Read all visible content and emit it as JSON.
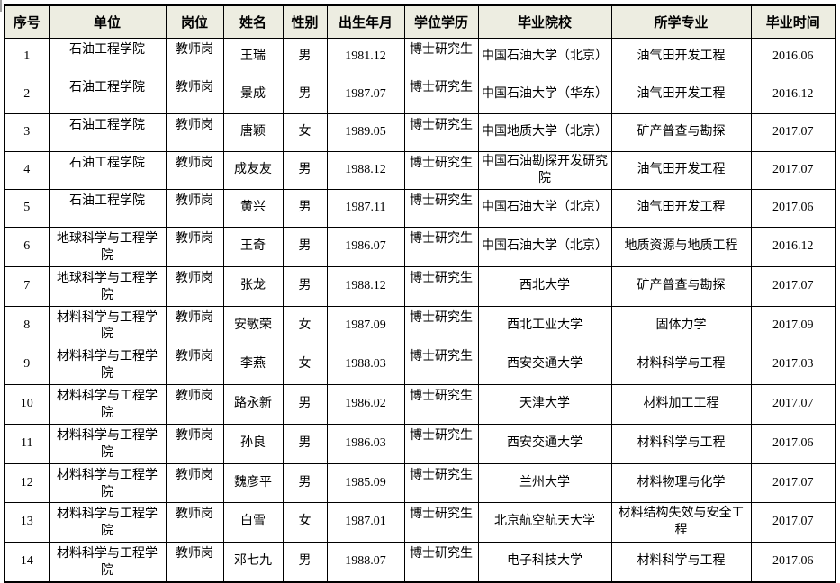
{
  "colors": {
    "header_bg": "#EDEDE1",
    "border": "#000000",
    "page_bg": "#FFFFFF"
  },
  "table": {
    "columns": [
      "序号",
      "单位",
      "岗位",
      "姓名",
      "性别",
      "出生年月",
      "学位学历",
      "毕业院校",
      "所学专业",
      "毕业时间"
    ],
    "rows": [
      [
        "1",
        "石油工程学院",
        "教师岗",
        "王瑞",
        "男",
        "1981.12",
        "博士研究生",
        "中国石油大学（北京）",
        "油气田开发工程",
        "2016.06"
      ],
      [
        "2",
        "石油工程学院",
        "教师岗",
        "景成",
        "男",
        "1987.07",
        "博士研究生",
        "中国石油大学（华东）",
        "油气田开发工程",
        "2016.12"
      ],
      [
        "3",
        "石油工程学院",
        "教师岗",
        "唐颖",
        "女",
        "1989.05",
        "博士研究生",
        "中国地质大学（北京）",
        "矿产普查与勘探",
        "2017.07"
      ],
      [
        "4",
        "石油工程学院",
        "教师岗",
        "成友友",
        "男",
        "1988.12",
        "博士研究生",
        "中国石油勘探开发研究院",
        "油气田开发工程",
        "2017.07"
      ],
      [
        "5",
        "石油工程学院",
        "教师岗",
        "黄兴",
        "男",
        "1987.11",
        "博士研究生",
        "中国石油大学（北京）",
        "油气田开发工程",
        "2017.06"
      ],
      [
        "6",
        "地球科学与工程学院",
        "教师岗",
        "王奇",
        "男",
        "1986.07",
        "博士研究生",
        "中国石油大学（北京）",
        "地质资源与地质工程",
        "2016.12"
      ],
      [
        "7",
        "地球科学与工程学院",
        "教师岗",
        "张龙",
        "男",
        "1988.12",
        "博士研究生",
        "西北大学",
        "矿产普查与勘探",
        "2017.07"
      ],
      [
        "8",
        "材料科学与工程学院",
        "教师岗",
        "安敏荣",
        "女",
        "1987.09",
        "博士研究生",
        "西北工业大学",
        "固体力学",
        "2017.09"
      ],
      [
        "9",
        "材料科学与工程学院",
        "教师岗",
        "李燕",
        "女",
        "1988.03",
        "博士研究生",
        "西安交通大学",
        "材料科学与工程",
        "2017.03"
      ],
      [
        "10",
        "材料科学与工程学院",
        "教师岗",
        "路永新",
        "男",
        "1986.02",
        "博士研究生",
        "天津大学",
        "材料加工工程",
        "2017.07"
      ],
      [
        "11",
        "材料科学与工程学院",
        "教师岗",
        "孙良",
        "男",
        "1986.03",
        "博士研究生",
        "西安交通大学",
        "材料科学与工程",
        "2017.06"
      ],
      [
        "12",
        "材料科学与工程学院",
        "教师岗",
        "魏彦平",
        "男",
        "1985.09",
        "博士研究生",
        "兰州大学",
        "材料物理与化学",
        "2017.07"
      ],
      [
        "13",
        "材料科学与工程学院",
        "教师岗",
        "白雪",
        "女",
        "1987.01",
        "博士研究生",
        "北京航空航天大学",
        "材料结构失效与安全工程",
        "2017.07"
      ],
      [
        "14",
        "材料科学与工程学院",
        "教师岗",
        "邓七九",
        "男",
        "1988.07",
        "博士研究生",
        "电子科技大学",
        "材料科学与工程",
        "2017.06"
      ]
    ]
  }
}
